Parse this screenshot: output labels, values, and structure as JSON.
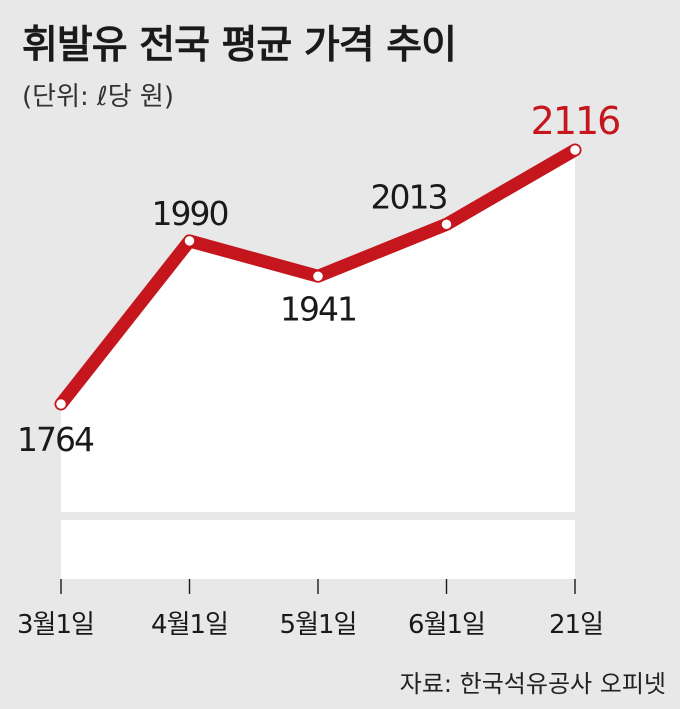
{
  "title": "휘발유 전국 평균 가격 추이",
  "subtitle": "(단위: ℓ당 원)",
  "source": "자료: 한국석유공사 오피넷",
  "colors": {
    "background": "#e8e8e9",
    "plot_area": "#ffffff",
    "line": "#c4161c",
    "highlight_label": "#c4161c",
    "text": "#1a1a1a"
  },
  "chart_data": {
    "type": "area",
    "title": "휘발유 전국 평균 가격 추이",
    "unit": "(단위: ℓ당 원)",
    "categories": [
      "3월1일",
      "4월1일",
      "5월1일",
      "6월1일",
      "21일"
    ],
    "series": [
      {
        "values": [
          1764,
          1990,
          1941,
          2013,
          2116
        ]
      }
    ],
    "data_labels": [
      "1764",
      "1990",
      "1941",
      "2013",
      "2116"
    ],
    "ylim": [
      1700,
      2150
    ],
    "grid": false,
    "legend": "none"
  }
}
